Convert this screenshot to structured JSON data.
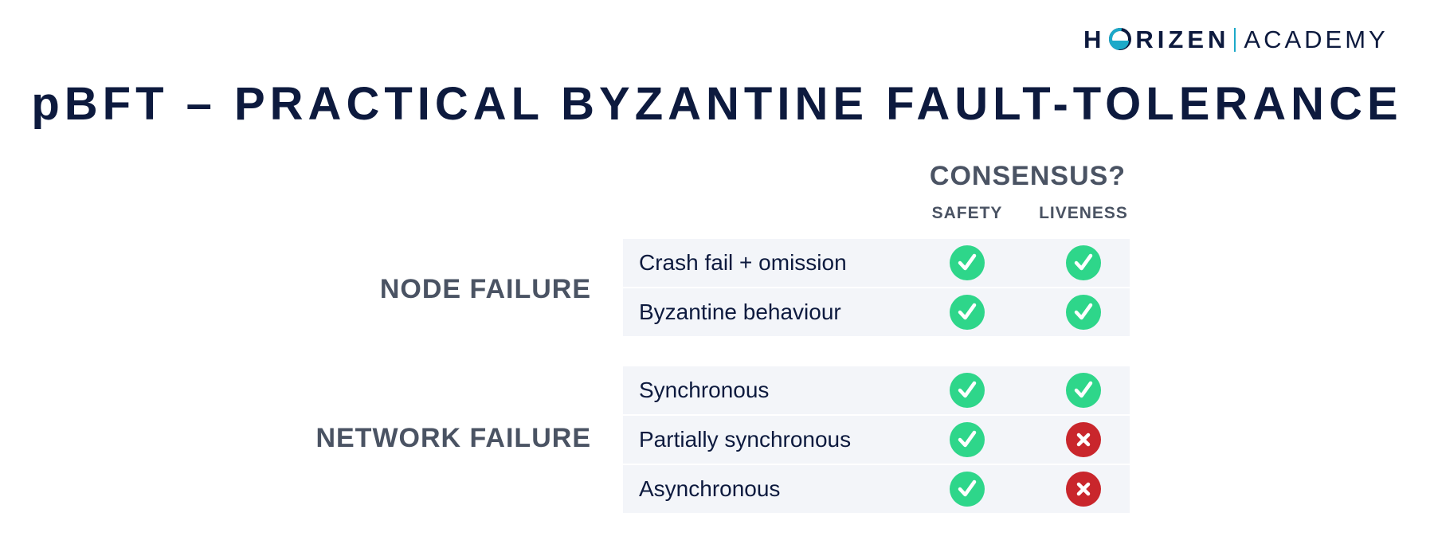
{
  "logo": {
    "brand_pre": "H",
    "brand_post": "RIZEN",
    "brand_suffix": "ACADEMY",
    "o_icon": "horizen-o-icon"
  },
  "title": "pBFT – PRACTICAL BYZANTINE FAULT-TOLERANCE",
  "table": {
    "consensus_header": "CONSENSUS?",
    "columns": [
      "SAFETY",
      "LIVENESS"
    ],
    "groups": [
      {
        "label": "NODE FAILURE",
        "rows": [
          {
            "label": "Crash fail + omission",
            "safety": true,
            "liveness": true
          },
          {
            "label": "Byzantine behaviour",
            "safety": true,
            "liveness": true
          }
        ]
      },
      {
        "label": "NETWORK FAILURE",
        "rows": [
          {
            "label": "Synchronous",
            "safety": true,
            "liveness": true
          },
          {
            "label": "Partially synchronous",
            "safety": true,
            "liveness": false
          },
          {
            "label": "Asynchronous",
            "safety": true,
            "liveness": false
          }
        ]
      }
    ]
  },
  "colors": {
    "check": "#2ed68a",
    "cross": "#c9262c",
    "row_bg": "#f3f5f9",
    "navy": "#0d1a3e",
    "gray": "#4a5363",
    "accent": "#1ca9c9"
  }
}
